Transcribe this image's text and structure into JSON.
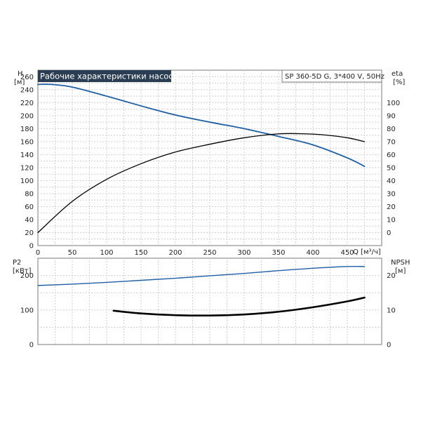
{
  "chart_data": [
    {
      "type": "line",
      "title": "Рабочие характеристики насоса",
      "subtitle": "SP 360-5D G, 3*400 V, 50Hz",
      "xlabel": "Q [м³/ч]",
      "xlim": [
        0,
        500
      ],
      "x_ticks": [
        0,
        50,
        100,
        150,
        200,
        250,
        300,
        350,
        400,
        450
      ],
      "y_left": {
        "label_top": "H",
        "label_unit": "[м]",
        "lim": [
          0,
          270
        ],
        "ticks": [
          0,
          20,
          40,
          60,
          80,
          100,
          120,
          140,
          160,
          180,
          200,
          220,
          240,
          260
        ]
      },
      "y_right": {
        "label_top": "eta",
        "label_unit": "[%]",
        "lim": [
          -10,
          125
        ],
        "ticks": [
          0,
          10,
          20,
          30,
          40,
          50,
          60,
          70,
          80,
          90,
          100
        ]
      },
      "grid": true,
      "series": [
        {
          "axis": "left",
          "color": "#1f5fa6",
          "x": [
            0,
            20,
            50,
            100,
            150,
            200,
            250,
            300,
            350,
            400,
            450,
            475
          ],
          "values": [
            248,
            248,
            244,
            230,
            215,
            201,
            190,
            180,
            168,
            155,
            135,
            122
          ]
        },
        {
          "axis": "right",
          "color": "#000000",
          "x": [
            0,
            50,
            100,
            150,
            200,
            250,
            300,
            350,
            390,
            420,
            450,
            475
          ],
          "values": [
            0,
            24,
            41,
            53,
            62,
            68,
            73,
            76,
            76,
            75,
            73,
            70
          ]
        }
      ]
    },
    {
      "type": "line",
      "xlim": [
        0,
        500
      ],
      "y_left": {
        "label_top": "P2",
        "label_unit": "[кВт]",
        "lim": [
          0,
          250
        ],
        "ticks": [
          0,
          100,
          200
        ]
      },
      "y_right": {
        "label_top": "NPSH",
        "label_unit": "[м]",
        "lim": [
          0,
          25
        ],
        "ticks": [
          0,
          10,
          20
        ]
      },
      "grid": true,
      "series": [
        {
          "axis": "left",
          "color": "#1f5fa6",
          "x": [
            0,
            50,
            100,
            150,
            200,
            250,
            300,
            350,
            400,
            450,
            475
          ],
          "values": [
            171,
            175,
            180,
            186,
            192,
            199,
            206,
            214,
            221,
            226,
            226
          ]
        },
        {
          "axis": "right",
          "color": "#000000",
          "x": [
            110,
            150,
            200,
            250,
            300,
            350,
            400,
            450,
            475
          ],
          "values": [
            9.8,
            9.0,
            8.5,
            8.4,
            8.7,
            9.5,
            10.8,
            12.5,
            13.6
          ]
        }
      ]
    }
  ]
}
